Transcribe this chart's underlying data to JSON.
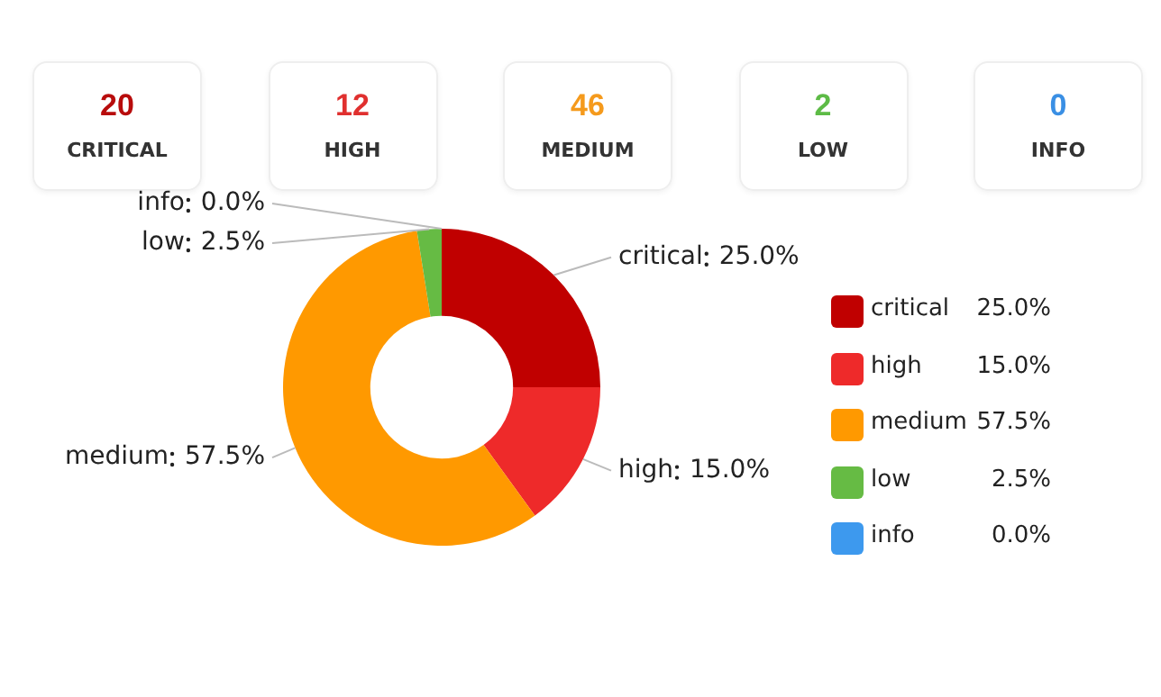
{
  "chart_data": [
    {
      "type": "other",
      "categories": [
        "CRITICAL",
        "HIGH",
        "MEDIUM",
        "LOW",
        "INFO"
      ],
      "values": [
        20,
        12,
        46,
        2,
        0
      ],
      "data_labels": true,
      "colors": [
        "#b80c0c",
        "#e0302f",
        "#f59a1c",
        "#5dbb46",
        "#3a8fe4"
      ]
    },
    {
      "type": "donut",
      "categories": [
        "critical",
        "high",
        "medium",
        "low",
        "info"
      ],
      "values": [
        25,
        15,
        57.5,
        2.5,
        0
      ],
      "value_labels": [
        "25.0%",
        "15.0%",
        "57.5%",
        "2.5%",
        "0.0%"
      ],
      "colors": [
        "#c00000",
        "#ee2a2a",
        "#ff9900",
        "#66bb44",
        "#3d99ee"
      ],
      "legend": "right"
    }
  ]
}
